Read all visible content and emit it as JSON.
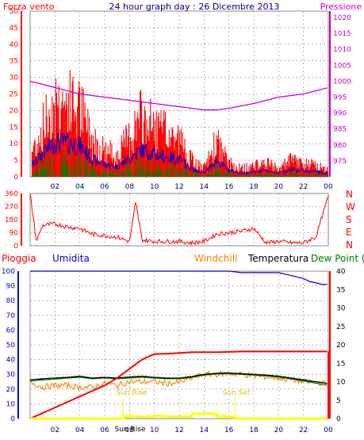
{
  "chart_data": [
    {
      "type": "line",
      "title": "24 hour graph day : 26 Dicembre 2013",
      "ylabel_left": "Forza vento",
      "ylabel_right": "Pressione",
      "ylim": [
        0,
        50
      ],
      "ylim_right": [
        970,
        1022
      ],
      "yticks_left": [
        "0",
        "5",
        "10",
        "15",
        "20",
        "25",
        "30",
        "35",
        "40",
        "45",
        "50"
      ],
      "yticks_right": [
        "975",
        "980",
        "985",
        "990",
        "995",
        "1000",
        "1005",
        "1010",
        "1015",
        "1020"
      ],
      "xticks": [
        "02",
        "04",
        "06",
        "08",
        "10",
        "12",
        "14",
        "16",
        "18",
        "20",
        "22",
        "00"
      ],
      "grid": true,
      "colors": {
        "gust": "#ff0000",
        "speed": "#0000cc",
        "bars": "#008000",
        "pressure": "#cc00cc"
      },
      "series": [
        {
          "name": "Forza vento",
          "x": [
            0,
            1,
            2,
            3,
            4,
            5,
            6,
            7,
            8,
            9,
            10,
            11,
            12,
            13,
            14,
            15,
            16,
            17,
            18,
            19,
            20,
            21,
            22,
            23,
            24
          ],
          "values": [
            8,
            18,
            28,
            27,
            25,
            14,
            10,
            8,
            15,
            22,
            18,
            16,
            14,
            6,
            3,
            13,
            5,
            3,
            4,
            5,
            3,
            6,
            5,
            4,
            3
          ]
        },
        {
          "name": "Pressione",
          "x": [
            0,
            2,
            4,
            6,
            8,
            10,
            12,
            14,
            15,
            16,
            18,
            20,
            22,
            24
          ],
          "values": [
            1000,
            998,
            996,
            995,
            994,
            993,
            992,
            991,
            991,
            991.5,
            993,
            995,
            996,
            998
          ]
        }
      ]
    },
    {
      "type": "scatter",
      "ylabel_right": [
        "N",
        "W",
        "S",
        "E",
        "N"
      ],
      "yticks_left": [
        "0",
        "90",
        "180",
        "270",
        "360"
      ],
      "ylim": [
        0,
        360
      ],
      "x": [
        0,
        0.5,
        1,
        2,
        3,
        4,
        5,
        6,
        7,
        8,
        8.5,
        9,
        10,
        11,
        12,
        13,
        14,
        15,
        16,
        17,
        18,
        19,
        20,
        21,
        22,
        23,
        24
      ],
      "values": [
        360,
        30,
        140,
        150,
        130,
        120,
        80,
        70,
        60,
        30,
        300,
        40,
        30,
        30,
        30,
        20,
        30,
        80,
        90,
        100,
        120,
        20,
        30,
        20,
        20,
        60,
        340
      ]
    },
    {
      "type": "line",
      "legend": [
        "Pioggia",
        "Umidita",
        "Windchill",
        "Temperatura",
        "Dew Point (°C"
      ],
      "yticks_left": [
        "0",
        "10",
        "20",
        "30",
        "40",
        "50",
        "60",
        "70",
        "80",
        "90",
        "100"
      ],
      "yticks_right": [
        "0",
        "5",
        "10",
        "15",
        "20",
        "25",
        "30",
        "35",
        "40"
      ],
      "ylim": [
        0,
        100
      ],
      "ylim_right": [
        0,
        40
      ],
      "annotations": [
        "Sun Rise",
        "Sun Set",
        "Sun Rise"
      ],
      "colors": {
        "rain": "#ff0000",
        "hum": "#0000cc",
        "wchill": "#ff8000",
        "temp": "#000000",
        "dew": "#008000",
        "sun": "#ffff00"
      },
      "series": [
        {
          "name": "Pioggia",
          "x": [
            0,
            1,
            2,
            3,
            4,
            5,
            6,
            7,
            8,
            9,
            10,
            11,
            12,
            13,
            14,
            15,
            16,
            17,
            18,
            19,
            20,
            21,
            22,
            23,
            24
          ],
          "values": [
            0,
            1.5,
            3,
            4.5,
            6,
            7.5,
            9,
            11,
            13.5,
            16,
            17.5,
            17.6,
            17.8,
            18,
            18,
            18,
            18.1,
            18.2,
            18.2,
            18.2,
            18.2,
            18.2,
            18.2,
            18.2,
            18.2
          ]
        },
        {
          "name": "Umidita",
          "x": [
            0,
            2,
            4,
            6,
            8,
            10,
            12,
            14,
            16,
            17,
            18,
            19,
            20,
            20.5,
            21,
            22,
            22.5,
            23,
            23.5,
            24
          ],
          "values": [
            100,
            100,
            100,
            100,
            100,
            100,
            100,
            100,
            100,
            99,
            99,
            99,
            99,
            98,
            97,
            95,
            93,
            92,
            91,
            91
          ]
        },
        {
          "name": "Temperatura",
          "x": [
            0,
            1,
            2,
            3,
            4,
            5,
            6,
            7,
            8,
            9,
            10,
            11,
            12,
            13,
            14,
            15,
            16,
            17,
            18,
            19,
            20,
            21,
            22,
            23,
            24
          ],
          "values": [
            10.5,
            10.8,
            11,
            11.2,
            11.5,
            11,
            11.2,
            11,
            11.3,
            11.5,
            11.2,
            11,
            11,
            11.4,
            12,
            12.3,
            12.4,
            12.2,
            12,
            11.8,
            11.5,
            11,
            10.5,
            10,
            9.5
          ]
        },
        {
          "name": "Windchill",
          "x": [
            0,
            1,
            2,
            3,
            4,
            5,
            6,
            7,
            8,
            9,
            10,
            11,
            12,
            13,
            14,
            15,
            16,
            17,
            18,
            19,
            20,
            21,
            22,
            23,
            24
          ],
          "values": [
            10,
            8.5,
            9,
            9,
            8.5,
            8.5,
            9.5,
            9,
            10,
            10,
            10,
            9.5,
            9.8,
            11,
            12,
            12,
            12.2,
            12,
            11.5,
            11.3,
            11,
            10.5,
            10,
            9.8,
            9.5
          ]
        },
        {
          "name": "Dew Point (°C",
          "x": [
            0,
            1,
            2,
            3,
            4,
            5,
            6,
            7,
            8,
            9,
            10,
            11,
            12,
            13,
            14,
            15,
            16,
            17,
            18,
            19,
            20,
            21,
            22,
            23,
            24
          ],
          "values": [
            10.2,
            10.5,
            10.7,
            11,
            11.2,
            10.8,
            11,
            10.8,
            11,
            11.2,
            11,
            10.8,
            10.8,
            11.2,
            11.8,
            12.1,
            12.2,
            12,
            11.8,
            11.6,
            11.2,
            10.8,
            10.2,
            9.6,
            9
          ]
        }
      ]
    }
  ]
}
